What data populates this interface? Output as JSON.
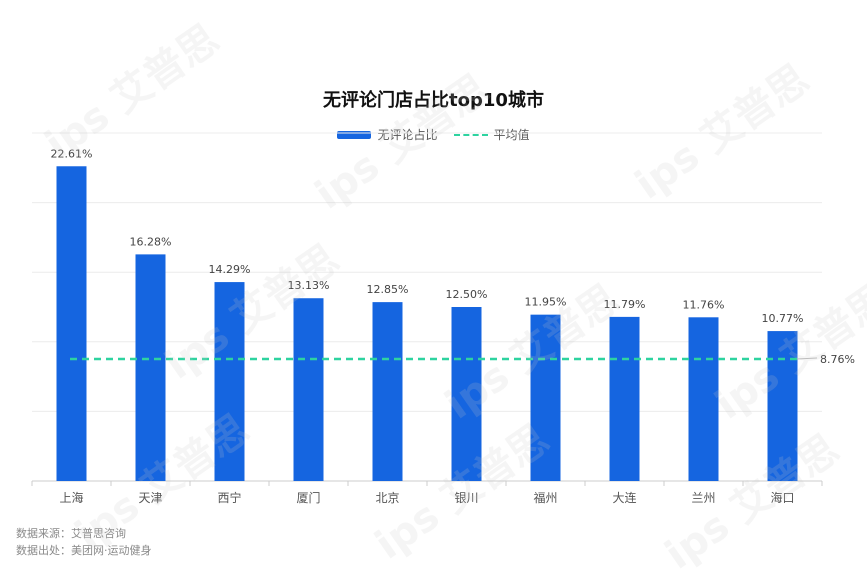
{
  "chart_data": {
    "type": "bar",
    "title": "无评论门店占比top10城市",
    "categories": [
      "上海",
      "天津",
      "西宁",
      "厦门",
      "北京",
      "银川",
      "福州",
      "大连",
      "兰州",
      "海口"
    ],
    "series": [
      {
        "name": "无评论占比",
        "values": [
          22.61,
          16.28,
          14.29,
          13.13,
          12.85,
          12.5,
          11.95,
          11.79,
          11.76,
          10.77
        ],
        "labels": [
          "22.61%",
          "16.28%",
          "14.29%",
          "13.13%",
          "12.85%",
          "12.50%",
          "11.95%",
          "11.79%",
          "11.76%",
          "10.77%"
        ]
      }
    ],
    "average": {
      "name": "平均值",
      "value": 8.76,
      "label": "8.76%"
    },
    "ylim": [
      0,
      25
    ],
    "grid": true,
    "legend_position": "top-center",
    "xlabel": "",
    "ylabel": ""
  },
  "colors": {
    "bar": "#1565e0",
    "average_line": "#2ed3a0",
    "grid": "#ececec",
    "axis": "#cccccc",
    "label": "#444444"
  },
  "source": {
    "line1": "数据来源：艾普思咨询",
    "line2": "数据出处：美团网·运动健身"
  },
  "watermark_text": "ips 艾普思"
}
